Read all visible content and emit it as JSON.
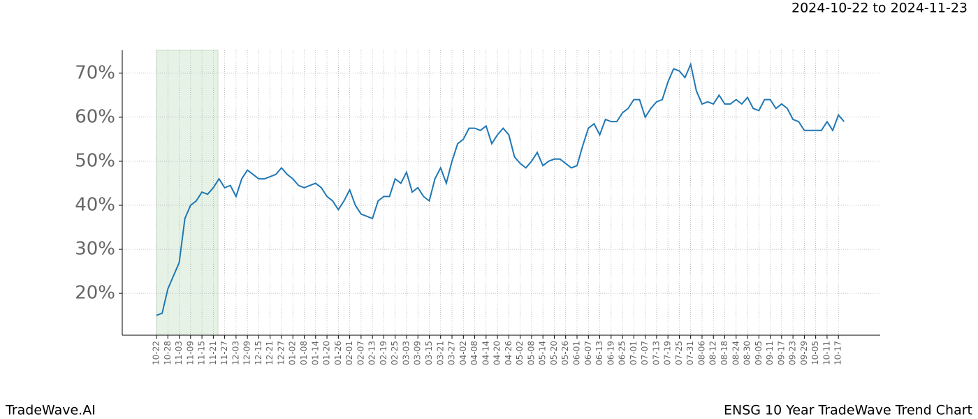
{
  "chart_data": {
    "type": "line",
    "date_range": "2024-10-22 to 2024-11-23",
    "brand": "TradeWave.AI",
    "title": "ENSG 10 Year TradeWave Trend Chart",
    "categories": [
      "10-22",
      null,
      "10-28",
      null,
      "11-03",
      null,
      "11-09",
      null,
      "11-15",
      null,
      "11-21",
      null,
      "11-27",
      null,
      "12-03",
      null,
      "12-09",
      null,
      "12-15",
      null,
      "12-21",
      null,
      "12-27",
      null,
      "01-02",
      null,
      "01-08",
      null,
      "01-14",
      null,
      "01-20",
      null,
      "01-26",
      null,
      "02-01",
      null,
      "02-07",
      null,
      "02-13",
      null,
      "02-19",
      null,
      "02-25",
      null,
      "03-03",
      null,
      "03-09",
      null,
      "03-15",
      null,
      "03-21",
      null,
      "03-27",
      null,
      "04-02",
      null,
      "04-08",
      null,
      "04-14",
      null,
      "04-20",
      null,
      "04-26",
      null,
      "05-02",
      null,
      "05-08",
      null,
      "05-14",
      null,
      "05-20",
      null,
      "05-26",
      null,
      "06-01",
      null,
      "06-07",
      null,
      "06-13",
      null,
      "06-19",
      null,
      "06-25",
      null,
      "07-01",
      null,
      "07-07",
      null,
      "07-13",
      null,
      "07-19",
      null,
      "07-25",
      null,
      "07-31",
      null,
      "08-06",
      null,
      "08-12",
      null,
      "08-18",
      null,
      "08-24",
      null,
      "08-30",
      null,
      "09-05",
      null,
      "09-11",
      null,
      "09-17",
      null,
      "09-23",
      null,
      "09-29",
      null,
      "10-05",
      null,
      "10-11",
      null,
      "10-17",
      null
    ],
    "series": [
      {
        "color": "#1f77b4",
        "values": [
          15,
          15.5,
          21,
          24,
          27,
          37,
          40,
          41,
          43,
          42.5,
          44,
          46,
          44,
          44.5,
          42,
          46,
          48,
          47,
          46,
          46,
          46.5,
          47,
          48.5,
          47,
          46,
          44.5,
          44,
          44.5,
          45,
          44,
          42,
          41,
          39,
          41,
          43.5,
          40,
          38,
          37.5,
          37,
          41,
          42,
          42,
          46,
          45,
          47.5,
          43,
          44,
          42,
          41,
          46,
          48.5,
          45,
          50,
          54,
          55,
          57.5,
          57.5,
          57,
          58,
          54,
          56,
          57.5,
          56,
          51,
          49.5,
          48.5,
          50,
          52,
          49,
          50,
          50.5,
          50.5,
          49.5,
          48.5,
          49,
          53.5,
          57.5,
          58.5,
          56,
          59.5,
          59,
          59,
          61,
          62,
          64,
          64,
          60,
          62,
          63.5,
          64,
          68,
          71,
          70.5,
          69,
          72,
          66,
          63,
          63.5,
          63,
          65,
          63,
          63,
          64,
          63,
          64.5,
          62,
          61.5,
          64,
          64,
          62,
          63,
          62,
          59.5,
          59,
          57,
          57,
          57,
          57,
          59,
          57,
          60.5,
          59
        ]
      }
    ],
    "ylim": [
      10.5,
      75.2
    ],
    "yticks": [
      {
        "value": 20,
        "label": "20%"
      },
      {
        "value": 30,
        "label": "30%"
      },
      {
        "value": 40,
        "label": "40%"
      },
      {
        "value": 50,
        "label": "50%"
      },
      {
        "value": 60,
        "label": "60%"
      },
      {
        "value": 70,
        "label": "70%"
      }
    ],
    "grid": true
  }
}
